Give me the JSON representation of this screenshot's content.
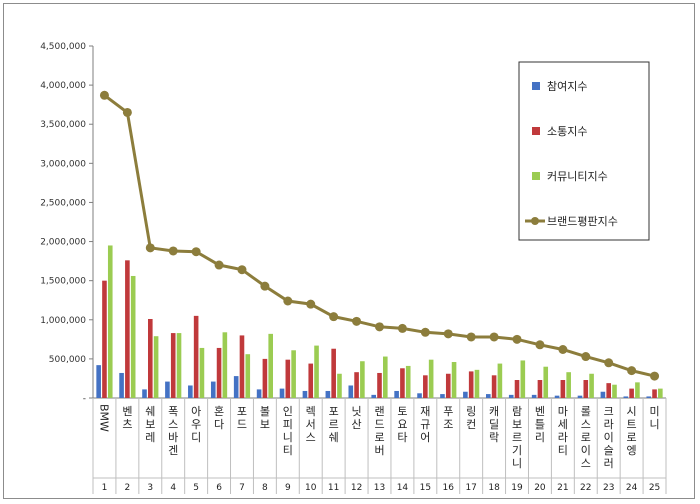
{
  "chart_data": {
    "type": "bar",
    "title": "",
    "xlabel": "",
    "ylabel": "",
    "ylim": [
      0,
      4500000
    ],
    "yticks": [
      0,
      500000,
      1000000,
      1500000,
      2000000,
      2500000,
      3000000,
      3500000,
      4000000,
      4500000
    ],
    "ytick_labels": [
      "-",
      "500,000",
      "1,000,000",
      "1,500,000",
      "2,000,000",
      "2,500,000",
      "3,000,000",
      "3,500,000",
      "4,000,000",
      "4,500,000"
    ],
    "ranks": [
      "1",
      "2",
      "3",
      "4",
      "5",
      "6",
      "7",
      "8",
      "9",
      "10",
      "11",
      "12",
      "13",
      "14",
      "15",
      "16",
      "17",
      "18",
      "19",
      "20",
      "21",
      "22",
      "23",
      "24",
      "25"
    ],
    "categories": [
      "BMW",
      "벤츠",
      "쉐보레",
      "폭스바겐",
      "아우디",
      "혼다",
      "포드",
      "볼보",
      "인피니티",
      "렉서스",
      "포르쉐",
      "닛산",
      "랜드로버",
      "토요타",
      "재규어",
      "푸조",
      "링컨",
      "캐딜락",
      "람보르기니",
      "벤틀리",
      "마세라티",
      "롤스로이스",
      "크라이슬러",
      "시트로엥",
      "미니"
    ],
    "grid": false,
    "legend_position": "right",
    "series": [
      {
        "name": "참여지수",
        "kind": "bar",
        "color": "#4472c4",
        "values": [
          420000,
          320000,
          110000,
          210000,
          160000,
          210000,
          280000,
          110000,
          120000,
          90000,
          90000,
          160000,
          40000,
          90000,
          60000,
          50000,
          80000,
          50000,
          40000,
          40000,
          30000,
          30000,
          80000,
          20000,
          20000
        ]
      },
      {
        "name": "소통지수",
        "kind": "bar",
        "color": "#c0393b",
        "values": [
          1500000,
          1760000,
          1010000,
          830000,
          1050000,
          640000,
          800000,
          500000,
          490000,
          440000,
          630000,
          330000,
          320000,
          380000,
          290000,
          310000,
          340000,
          290000,
          230000,
          230000,
          230000,
          230000,
          190000,
          120000,
          110000
        ]
      },
      {
        "name": "커뮤니티지수",
        "kind": "bar",
        "color": "#9bcc52",
        "values": [
          1950000,
          1560000,
          790000,
          830000,
          640000,
          840000,
          560000,
          820000,
          610000,
          670000,
          310000,
          470000,
          530000,
          410000,
          490000,
          460000,
          360000,
          440000,
          480000,
          400000,
          330000,
          310000,
          170000,
          200000,
          120000
        ]
      },
      {
        "name": "브랜드평판지수",
        "kind": "line",
        "color": "#8c7d3c",
        "values": [
          3870000,
          3650000,
          1920000,
          1880000,
          1870000,
          1700000,
          1640000,
          1430000,
          1240000,
          1200000,
          1040000,
          980000,
          910000,
          890000,
          840000,
          820000,
          780000,
          780000,
          750000,
          680000,
          620000,
          530000,
          450000,
          350000,
          280000
        ]
      }
    ]
  }
}
